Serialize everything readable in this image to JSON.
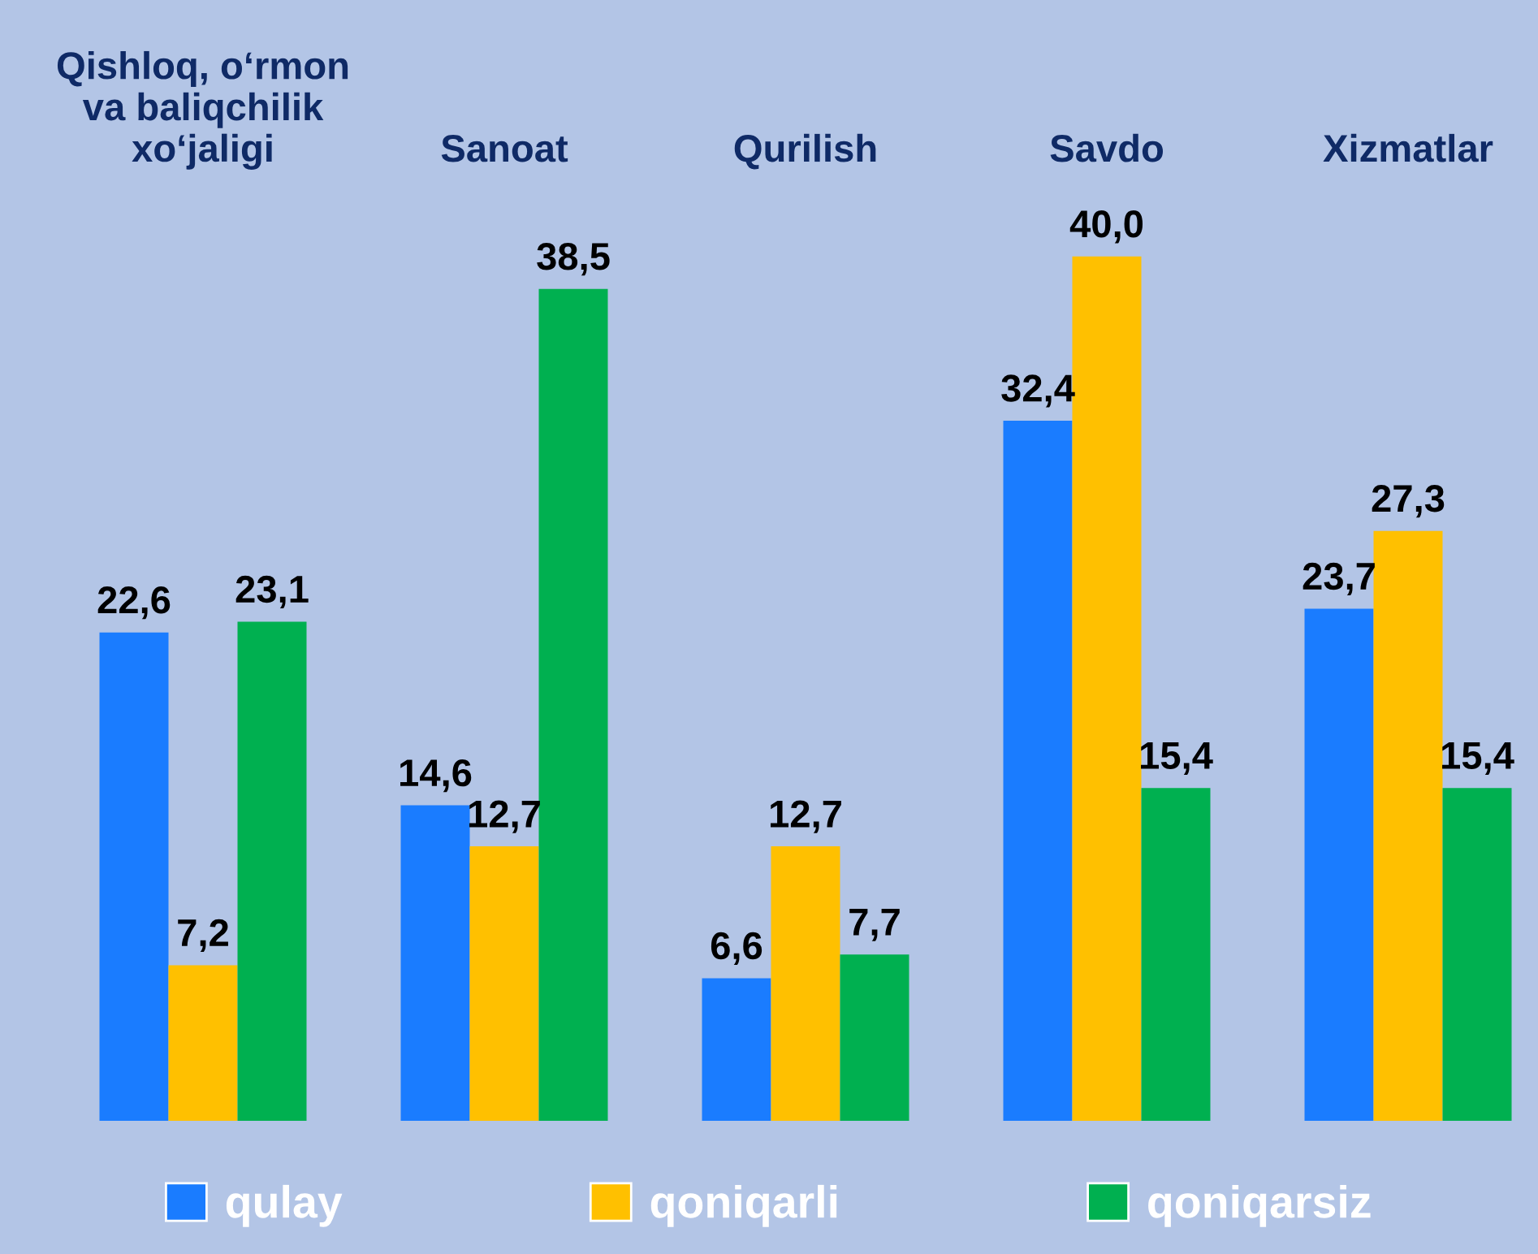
{
  "chart_data": {
    "type": "bar",
    "categories": [
      "Qishloq, o‘rmon\nva baliqchilik\nxo‘jaligi",
      "Sanoat",
      "Qurilish",
      "Savdo",
      "Xizmatlar"
    ],
    "series": [
      {
        "name": "qulay",
        "color": "#1a7cff",
        "values": [
          22.6,
          14.6,
          6.6,
          32.4,
          23.7
        ],
        "value_labels": [
          "22,6",
          "14,6",
          "6,6",
          "32,4",
          "23,7"
        ]
      },
      {
        "name": "qoniqarli",
        "color": "#ffc000",
        "values": [
          7.2,
          12.7,
          12.7,
          40.0,
          27.3
        ],
        "value_labels": [
          "7,2",
          "12,7",
          "12,7",
          "40,0",
          "27,3"
        ]
      },
      {
        "name": "qoniqarsiz",
        "color": "#00b050",
        "values": [
          23.1,
          38.5,
          7.7,
          15.4,
          15.4
        ],
        "value_labels": [
          "23,1",
          "38,5",
          "7,7",
          "15,4",
          "15,4"
        ]
      }
    ],
    "legend": "bottom",
    "grid": false
  }
}
